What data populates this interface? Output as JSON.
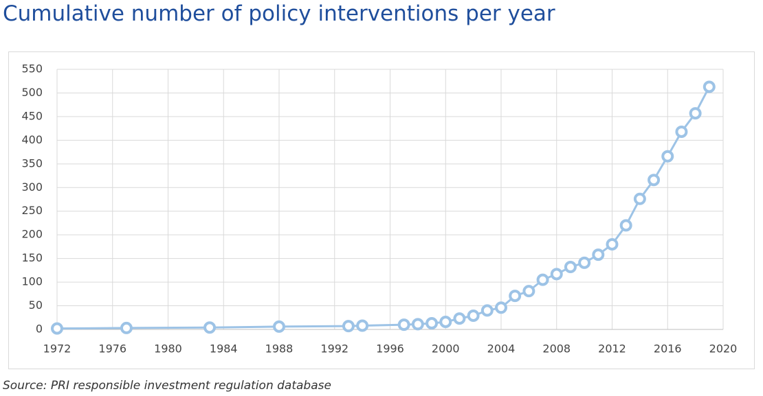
{
  "chart_data": {
    "type": "line",
    "title": "Cumulative number of policy interventions per year",
    "source": "Source: PRI responsible investment regulation database",
    "x": [
      1972,
      1977,
      1983,
      1988,
      1993,
      1994,
      1997,
      1998,
      1999,
      2000,
      2001,
      2002,
      2003,
      2004,
      2005,
      2006,
      2007,
      2008,
      2009,
      2010,
      2011,
      2012,
      2013,
      2014,
      2015,
      2016,
      2017,
      2018,
      2019
    ],
    "series": [
      {
        "color": "#9dc3e6",
        "values": [
          2,
          3,
          4,
          6,
          7,
          8,
          10,
          11,
          13,
          16,
          23,
          29,
          40,
          46,
          71,
          81,
          105,
          117,
          132,
          141,
          158,
          180,
          220,
          276,
          316,
          366,
          418,
          457,
          513
        ]
      }
    ],
    "xlim": [
      1972,
      2020
    ],
    "xticks": [
      1972,
      1976,
      1980,
      1984,
      1988,
      1992,
      1996,
      2000,
      2004,
      2008,
      2012,
      2016,
      2020
    ],
    "ylim": [
      0,
      550
    ],
    "yticks": [
      0,
      50,
      100,
      150,
      200,
      250,
      300,
      350,
      400,
      450,
      500,
      550
    ],
    "grid": true,
    "markers": true
  }
}
